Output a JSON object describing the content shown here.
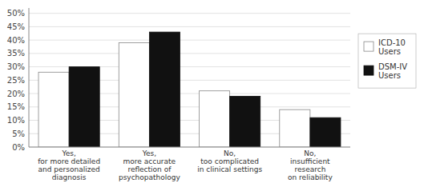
{
  "chart_data": {
    "type": "bar",
    "categories": [
      "Yes,\nfor more detailed\nand personalized\ndiagnosis",
      "Yes,\nmore accurate\nreflection of\npsychopathology",
      "No,\ntoo complicated\nin clinical settings",
      "No,\ninsufficient\nresearch\non reliability"
    ],
    "series": [
      {
        "name": "ICD-10\nUsers",
        "color": "#ffffff",
        "values": [
          28,
          39,
          21,
          14
        ]
      },
      {
        "name": "DSM-IV\nUsers",
        "color": "#111111",
        "values": [
          30,
          43,
          19,
          11
        ]
      }
    ],
    "ylim": [
      0,
      52
    ],
    "yticks": [
      {
        "value": 0,
        "label": "0%"
      },
      {
        "value": 5,
        "label": "5%"
      },
      {
        "value": 10,
        "label": "10%"
      },
      {
        "value": 15,
        "label": "15%"
      },
      {
        "value": 20,
        "label": "20%"
      },
      {
        "value": 25,
        "label": "25%"
      },
      {
        "value": 30,
        "label": "30%"
      },
      {
        "value": 35,
        "label": "35%"
      },
      {
        "value": 40,
        "label": "40%"
      },
      {
        "value": 45,
        "label": "45%"
      },
      {
        "value": 50,
        "label": "50%"
      }
    ],
    "grid": true,
    "legend": "right"
  }
}
